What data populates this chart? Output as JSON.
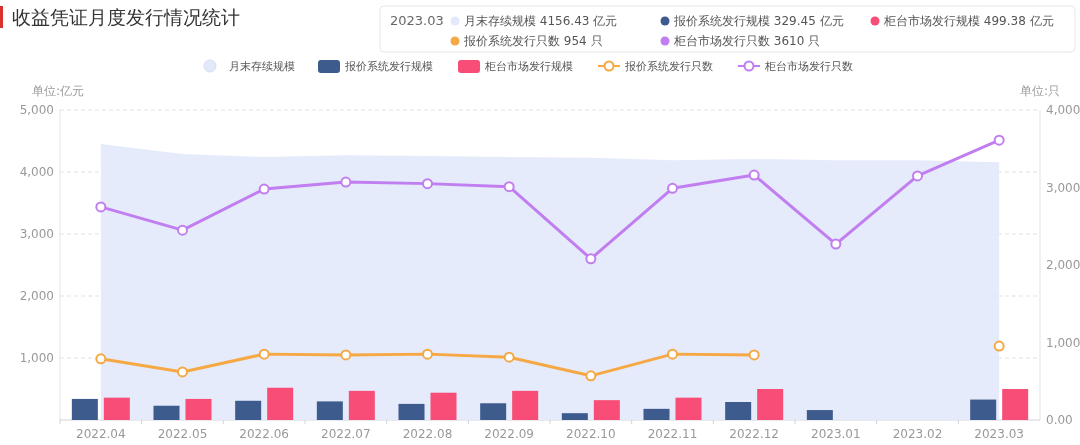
{
  "chart_data": {
    "type": "bar",
    "title": "收益凭证月度发行情况统计",
    "categories": [
      "2022.04",
      "2022.05",
      "2022.06",
      "2022.07",
      "2022.08",
      "2022.09",
      "2022.10",
      "2022.11",
      "2022.12",
      "2023.01",
      "2023.02",
      "2023.03"
    ],
    "series": [
      {
        "name": "月末存续规模",
        "type": "area",
        "color": "#e2e9fb",
        "values": [
          4450,
          4290,
          4240,
          4270,
          4260,
          4240,
          4230,
          4190,
          4210,
          4190,
          4190,
          4156.43
        ]
      },
      {
        "name": "报价系统发行规模",
        "color": "#3d5b8c",
        "values": [
          340,
          230,
          310,
          300,
          260,
          270,
          110,
          180,
          290,
          160,
          null,
          329.45
        ]
      },
      {
        "name": "柜台市场发行规模",
        "color": "#f74d77",
        "values": [
          360,
          340,
          520,
          470,
          440,
          470,
          320,
          360,
          500,
          null,
          null,
          499.38
        ]
      },
      {
        "name": "报价系统发行只数",
        "type": "line",
        "marker": "circle",
        "axis": "y2",
        "color": "#f5a843",
        "values": [
          790,
          620,
          850,
          840,
          850,
          810,
          570,
          850,
          840,
          null,
          null,
          954
        ]
      },
      {
        "name": "柜台市场发行只数",
        "type": "line",
        "marker": "circle",
        "axis": "y2",
        "color": "#c17ef0",
        "values": [
          2750,
          2450,
          2980,
          3070,
          3050,
          3010,
          2080,
          2990,
          3160,
          2270,
          3150,
          3610
        ]
      }
    ],
    "ylabel": "单位:亿元",
    "y2label": "单位:只",
    "ylim": [
      0,
      5000
    ],
    "yticks": [
      {
        "value": 1000,
        "label": "1,000"
      },
      {
        "value": 2000,
        "label": "2,000"
      },
      {
        "value": 3000,
        "label": "3,000"
      },
      {
        "value": 4000,
        "label": "4,000"
      },
      {
        "value": 5000,
        "label": "5,000"
      }
    ],
    "y2lim": [
      0,
      4000
    ],
    "y2ticks": [
      {
        "value": 0,
        "label": "0.00"
      },
      {
        "value": 1000,
        "label": "1,000"
      },
      {
        "value": 2000,
        "label": "2,000"
      },
      {
        "value": 3000,
        "label": "3,000"
      },
      {
        "value": 4000,
        "label": "4,000"
      }
    ],
    "grid": "y",
    "legend": "top",
    "annotations": [
      "2023.03",
      "月末存续规模 4156.43 亿元",
      "报价系统发行规模 329.45 亿元",
      "柜台市场发行规模 499.38 亿元",
      "报价系统发行只数 954 只",
      "柜台市场发行只数 3610 只"
    ]
  }
}
